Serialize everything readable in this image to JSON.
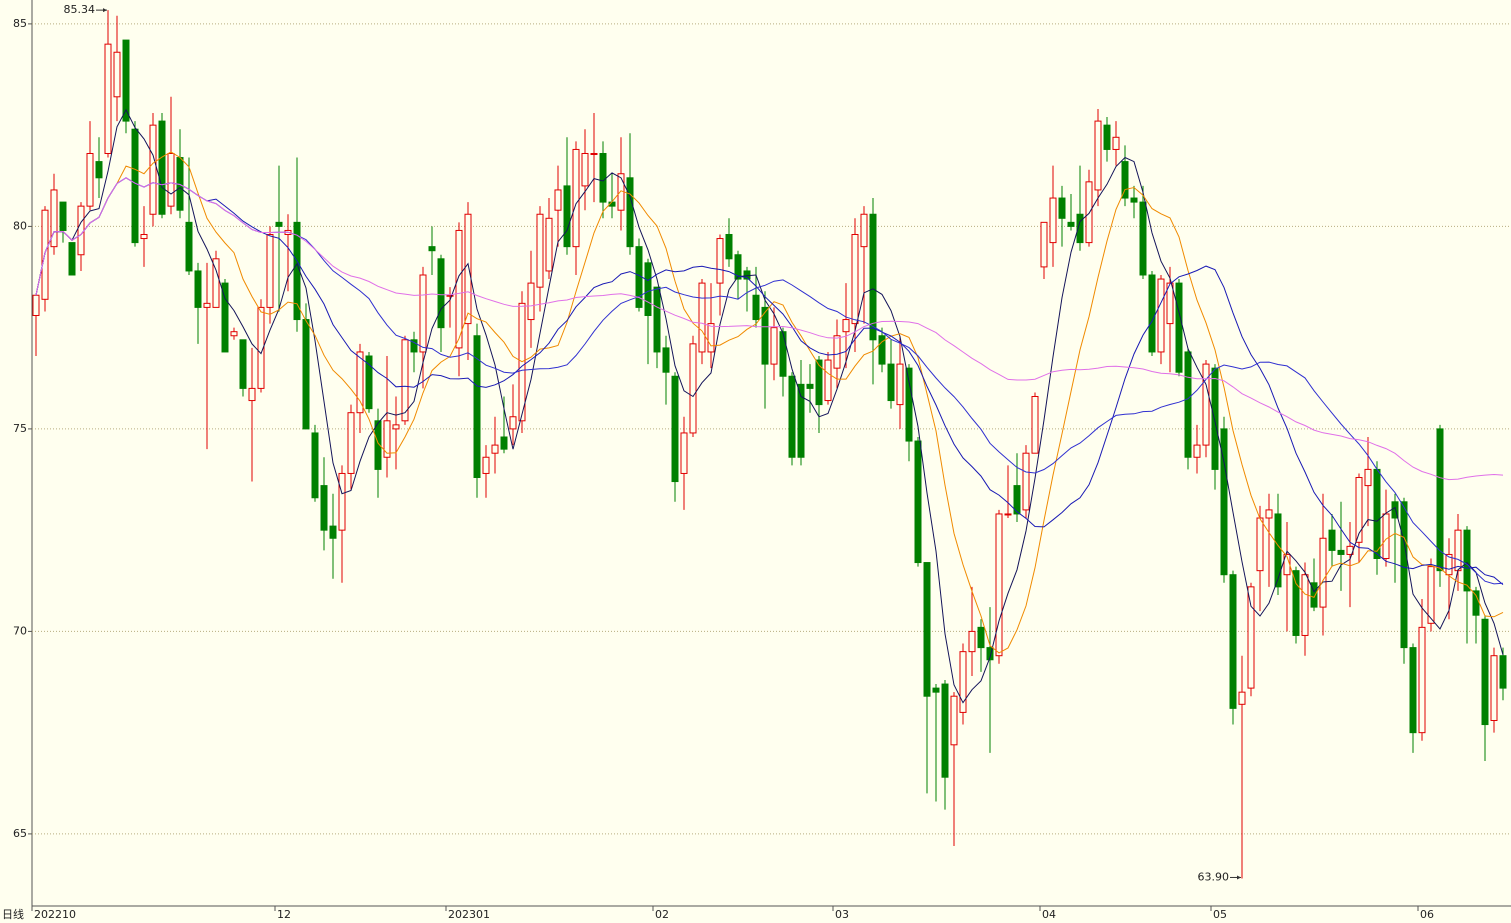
{
  "chart_data": {
    "type": "candlestick",
    "period_label": "日线",
    "ylim": [
      63.22,
      85.59
    ],
    "yticks": [
      65,
      70,
      75,
      80,
      85
    ],
    "grid": true,
    "up_color": "#e00000",
    "down_color": "#008000",
    "annotations": [
      {
        "value": 85.34,
        "label": "85.34"
      },
      {
        "value": 63.9,
        "label": "63.90"
      }
    ],
    "categories": [
      "202210",
      null,
      null,
      null,
      null,
      null,
      null,
      null,
      null,
      null,
      null,
      null,
      null,
      null,
      null,
      null,
      null,
      null,
      null,
      null,
      null,
      null,
      null,
      null,
      null,
      null,
      null,
      "12",
      null,
      null,
      null,
      null,
      null,
      null,
      null,
      null,
      null,
      null,
      null,
      null,
      null,
      null,
      null,
      null,
      null,
      null,
      "202301",
      null,
      null,
      null,
      null,
      null,
      null,
      null,
      null,
      null,
      null,
      null,
      null,
      null,
      null,
      null,
      null,
      null,
      null,
      null,
      null,
      null,
      null,
      "02",
      null,
      null,
      null,
      null,
      null,
      null,
      null,
      null,
      null,
      null,
      null,
      null,
      null,
      null,
      null,
      null,
      null,
      null,
      null,
      "03",
      null,
      null,
      null,
      null,
      null,
      null,
      null,
      null,
      null,
      null,
      null,
      null,
      null,
      null,
      null,
      null,
      null,
      null,
      null,
      null,
      null,
      null,
      "04",
      null,
      null,
      null,
      null,
      null,
      null,
      null,
      null,
      null,
      null,
      null,
      null,
      null,
      null,
      null,
      null,
      null,
      null,
      "05",
      null,
      null,
      null,
      null,
      null,
      null,
      null,
      null,
      null,
      null,
      null,
      null,
      null,
      null,
      null,
      null,
      null,
      null,
      null,
      null,
      null,
      null,
      "06",
      null,
      null,
      null,
      null,
      null,
      null,
      null,
      null,
      null
    ],
    "open": [
      77.8,
      78.2,
      79.5,
      80.6,
      79.6,
      79.3,
      80.5,
      81.6,
      81.8,
      83.2,
      84.6,
      82.4,
      79.7,
      80.3,
      82.6,
      80.5,
      81.7,
      80.1,
      78.9,
      78.0,
      78.0,
      78.6,
      77.3,
      77.2,
      75.7,
      76.0,
      78.0,
      80.1,
      79.8,
      80.1,
      77.7,
      74.9,
      73.6,
      72.6,
      72.5,
      73.9,
      75.4,
      76.8,
      75.2,
      74.3,
      75.0,
      75.2,
      77.2,
      76.9,
      79.5,
      79.2,
      78.3,
      77.0,
      77.6,
      77.3,
      73.9,
      74.4,
      74.8,
      75.0,
      75.2,
      77.7,
      78.5,
      78.9,
      80.4,
      81.0,
      79.5,
      81.0,
      81.8,
      81.8,
      80.6,
      80.4,
      81.2,
      79.5,
      79.1,
      78.5,
      77.0,
      76.3,
      73.9,
      74.9,
      76.9,
      76.9,
      78.6,
      79.8,
      79.3,
      78.9,
      78.3,
      78.0,
      76.6,
      77.4,
      76.3,
      76.1,
      76.1,
      76.7,
      75.7,
      76.5,
      77.4,
      77.6,
      79.5,
      80.3,
      77.3,
      76.6,
      75.6,
      76.5,
      74.7,
      71.7,
      68.6,
      68.7,
      67.2,
      68.0,
      69.5,
      70.1,
      69.6,
      69.4,
      72.9,
      73.6,
      73.0,
      74.4,
      79.0,
      79.6,
      80.7,
      80.1,
      80.3,
      79.6,
      80.9,
      82.5,
      81.9,
      81.6,
      80.7,
      80.6,
      78.8,
      76.9,
      77.6,
      78.6,
      76.9,
      74.3,
      74.6,
      76.5,
      75.0,
      71.4,
      68.2,
      68.6,
      71.5,
      72.8,
      72.9,
      71.4,
      71.5,
      69.9,
      71.2,
      70.6,
      72.5,
      72.0,
      71.9,
      72.2,
      73.6,
      74.0,
      71.8,
      73.2,
      73.2,
      69.6,
      67.5,
      70.2,
      75.0,
      71.4,
      71.5,
      72.5,
      71.0,
      70.3,
      67.8,
      69.4
    ],
    "high": [
      78.3,
      80.5,
      81.3,
      80.6,
      79.6,
      80.6,
      82.6,
      82.2,
      85.34,
      85.2,
      84.6,
      82.6,
      80.5,
      82.8,
      82.8,
      83.2,
      82.4,
      81.7,
      79.1,
      79.1,
      79.4,
      78.7,
      77.5,
      77.2,
      77.0,
      78.2,
      80.0,
      81.5,
      80.3,
      81.7,
      78.1,
      75.1,
      74.3,
      73.4,
      74.1,
      75.6,
      77.1,
      76.9,
      75.5,
      76.8,
      75.8,
      77.3,
      77.4,
      79.0,
      80.0,
      79.3,
      78.5,
      80.1,
      80.6,
      77.6,
      74.6,
      75.3,
      75.8,
      76.1,
      78.4,
      79.4,
      80.5,
      80.7,
      81.5,
      82.2,
      82.1,
      82.4,
      82.8,
      82.1,
      81.3,
      82.2,
      82.3,
      79.7,
      79.2,
      78.5,
      77.3,
      76.4,
      75.3,
      77.3,
      78.7,
      78.6,
      79.8,
      80.2,
      79.4,
      79.0,
      79.0,
      78.4,
      78.0,
      77.5,
      76.4,
      76.7,
      76.6,
      76.8,
      76.9,
      77.7,
      78.6,
      80.2,
      80.5,
      80.7,
      77.5,
      77.2,
      77.3,
      76.6,
      74.8,
      71.7,
      68.7,
      68.8,
      68.5,
      69.7,
      71.1,
      70.3,
      70.6,
      73.0,
      74.1,
      74.4,
      74.6,
      75.9,
      80.1,
      81.5,
      81.0,
      80.8,
      81.5,
      81.4,
      82.9,
      82.7,
      82.6,
      82.0,
      81.0,
      81.0,
      78.9,
      78.8,
      79.0,
      78.7,
      77.0,
      75.1,
      76.7,
      76.6,
      75.3,
      71.5,
      69.4,
      71.2,
      73.1,
      73.4,
      73.4,
      72.7,
      71.6,
      71.7,
      71.8,
      73.4,
      72.9,
      73.2,
      72.7,
      73.9,
      74.8,
      74.2,
      73.5,
      73.4,
      73.3,
      69.7,
      70.8,
      71.8,
      75.1,
      72.3,
      72.9,
      72.6,
      71.1,
      70.4,
      69.6,
      69.6
    ],
    "low": [
      76.8,
      77.9,
      79.3,
      79.6,
      78.8,
      78.9,
      80.4,
      80.7,
      81.7,
      82.6,
      82.3,
      79.5,
      79.0,
      80.0,
      80.2,
      80.3,
      80.2,
      78.8,
      77.1,
      74.5,
      78.0,
      76.9,
      77.2,
      75.8,
      73.7,
      75.9,
      77.6,
      77.9,
      78.4,
      77.4,
      75.0,
      73.2,
      72.0,
      71.3,
      71.2,
      73.5,
      74.9,
      75.4,
      73.3,
      73.8,
      74.0,
      75.1,
      76.4,
      76.0,
      78.8,
      76.9,
      77.5,
      76.3,
      76.7,
      73.3,
      73.3,
      73.9,
      74.4,
      74.6,
      74.9,
      77.0,
      77.9,
      78.7,
      79.5,
      79.3,
      78.8,
      80.4,
      80.6,
      80.2,
      80.2,
      79.9,
      79.3,
      77.9,
      76.6,
      76.5,
      75.6,
      73.2,
      73.0,
      74.8,
      76.6,
      76.5,
      77.8,
      79.0,
      78.2,
      77.9,
      77.5,
      75.5,
      76.2,
      75.8,
      74.1,
      74.1,
      75.4,
      74.9,
      75.6,
      76.0,
      76.5,
      76.9,
      77.6,
      76.1,
      76.4,
      75.5,
      75.0,
      74.2,
      71.6,
      66.0,
      65.8,
      65.6,
      64.7,
      67.7,
      68.9,
      69.0,
      67.0,
      69.2,
      72.8,
      72.7,
      72.8,
      74.4,
      78.7,
      79.0,
      79.5,
      79.9,
      79.4,
      79.5,
      80.5,
      81.6,
      81.5,
      80.5,
      80.2,
      78.7,
      76.8,
      76.6,
      76.4,
      76.3,
      74.0,
      73.9,
      74.3,
      73.5,
      71.2,
      67.7,
      63.9,
      68.4,
      70.5,
      71.1,
      70.9,
      70.0,
      69.7,
      69.4,
      70.5,
      69.9,
      71.6,
      71.0,
      70.6,
      71.7,
      72.6,
      71.4,
      71.6,
      71.2,
      69.2,
      67.0,
      67.3,
      70.0,
      71.1,
      70.3,
      71.0,
      69.7,
      69.7,
      66.8,
      67.5,
      68.3
    ],
    "close": [
      78.3,
      80.4,
      80.9,
      79.9,
      78.8,
      80.5,
      81.8,
      81.2,
      84.5,
      84.3,
      82.6,
      79.6,
      79.8,
      82.5,
      80.3,
      81.8,
      80.4,
      78.9,
      78.0,
      78.1,
      79.2,
      76.9,
      77.4,
      76.0,
      76.0,
      78.0,
      79.8,
      80.0,
      79.9,
      77.7,
      75.0,
      73.3,
      72.5,
      72.3,
      73.9,
      75.4,
      76.9,
      75.5,
      74.0,
      75.2,
      75.1,
      77.2,
      76.9,
      78.8,
      79.4,
      77.5,
      78.3,
      79.9,
      80.3,
      73.8,
      74.3,
      74.6,
      74.5,
      75.3,
      78.1,
      78.6,
      80.3,
      80.2,
      80.9,
      79.5,
      81.9,
      81.8,
      81.8,
      80.6,
      80.5,
      81.3,
      79.5,
      78.0,
      77.8,
      76.9,
      76.4,
      73.7,
      74.9,
      77.1,
      78.6,
      77.6,
      79.7,
      79.2,
      78.7,
      78.7,
      77.7,
      76.6,
      77.5,
      76.3,
      74.3,
      74.3,
      76.0,
      75.6,
      76.7,
      77.3,
      77.7,
      79.8,
      80.3,
      77.2,
      76.6,
      75.7,
      76.6,
      74.7,
      71.7,
      68.4,
      68.5,
      66.4,
      68.4,
      69.5,
      70.0,
      69.6,
      69.3,
      72.9,
      72.9,
      72.9,
      74.4,
      75.8,
      80.1,
      80.7,
      80.2,
      80.0,
      79.6,
      81.1,
      82.6,
      81.9,
      82.2,
      80.7,
      80.6,
      78.8,
      76.9,
      78.7,
      78.6,
      76.4,
      74.3,
      74.6,
      76.6,
      74.0,
      71.4,
      68.1,
      68.5,
      71.1,
      72.8,
      73.0,
      71.1,
      71.9,
      69.9,
      71.4,
      70.6,
      72.3,
      72.0,
      71.9,
      72.1,
      73.8,
      74.0,
      71.8,
      72.9,
      72.8,
      69.6,
      67.5,
      70.1,
      71.6,
      71.5,
      71.9,
      72.5,
      71.0,
      70.4,
      67.7,
      69.4,
      68.6
    ]
  }
}
